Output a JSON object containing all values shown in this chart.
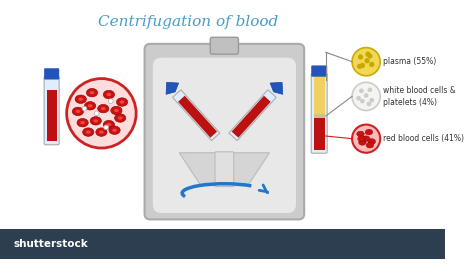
{
  "title": "Centrifugation of blood",
  "title_color": "#4a9cc7",
  "title_fontsize": 11,
  "bg_color": "#ffffff",
  "bottom_bar_color": "#2c3e50",
  "plasma_label": "plasma (55%)",
  "wbc_label": "white blood cells &\nplatelets (4%)",
  "rbc_label": "red blood cells (41%)",
  "plasma_color": "#f0d855",
  "plasma_dot_color": "#c8a800",
  "wbc_color": "#f5f5f0",
  "wbc_dot_color": "#cccccc",
  "rbc_color": "#cc1111",
  "rbc_bg_color": "#ffbbbb",
  "tube_red_color": "#bb1111",
  "tube_blue_color": "#2255bb",
  "tube_glass_color": "#ddeeff",
  "tube_beige_color": "#d4c090",
  "tube_yellow_color": "#f0d060",
  "centrifuge_outer_color": "#cccccc",
  "centrifuge_inner_color": "#e8e8e8",
  "centrifuge_chamber_color": "#f0f0f0",
  "arrow_color": "#2277cc",
  "label_fontsize": 5.5,
  "line_color": "#888888",
  "rbc_line_color": "#cc2222"
}
